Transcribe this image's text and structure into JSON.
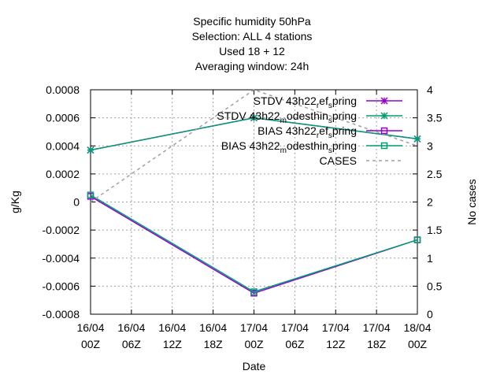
{
  "chart_data": {
    "type": "line",
    "title_lines": [
      "Specific humidity 50hPa",
      "Selection: ALL       4 stations",
      "Used  18  + 12",
      "Averaging window: 24h"
    ],
    "xlabel": "Date",
    "ylabel": "g/Kg",
    "y2label": "No cases",
    "x": [
      "16/04 00Z",
      "17/04 00Z",
      "18/04 00Z"
    ],
    "x_ticks": [
      [
        "16/04",
        "00Z"
      ],
      [
        "16/04",
        "06Z"
      ],
      [
        "16/04",
        "12Z"
      ],
      [
        "16/04",
        "18Z"
      ],
      [
        "17/04",
        "00Z"
      ],
      [
        "17/04",
        "06Z"
      ],
      [
        "17/04",
        "12Z"
      ],
      [
        "17/04",
        "18Z"
      ],
      [
        "18/04",
        "00Z"
      ]
    ],
    "ylim": [
      -0.0008,
      0.0008
    ],
    "y_ticks": [
      "-0.0008",
      "-0.0006",
      "-0.0004",
      "-0.0002",
      "0",
      "0.0002",
      "0.0004",
      "0.0006",
      "0.0008"
    ],
    "y2lim": [
      0,
      4
    ],
    "y2_ticks": [
      "0",
      "0.5",
      "1",
      "1.5",
      "2",
      "2.5",
      "3",
      "3.5",
      "4"
    ],
    "grid": true,
    "legend_position": "top-right",
    "series": [
      {
        "name": "STDV 43h22_ref_spring",
        "axis": "y",
        "color": "#9400d3",
        "marker": "star",
        "dash": false,
        "values": [
          0.00037,
          0.0006,
          0.00045
        ]
      },
      {
        "name": "STDV 43h22_modesthin_spring",
        "axis": "y",
        "color": "#009e73",
        "marker": "star",
        "dash": false,
        "values": [
          0.00037,
          0.0006,
          0.00045
        ]
      },
      {
        "name": "BIAS 43h22_ref_spring",
        "axis": "y",
        "color": "#9400d3",
        "marker": "open-square",
        "dash": false,
        "values": [
          4e-05,
          -0.00065,
          -0.00027
        ]
      },
      {
        "name": "BIAS 43h22_modesthin_spring",
        "axis": "y",
        "color": "#009e73",
        "marker": "open-square",
        "dash": false,
        "values": [
          5e-05,
          -0.00064,
          -0.00027
        ]
      },
      {
        "name": "CASES",
        "axis": "y2",
        "color": "#a0a0a0",
        "marker": "none",
        "dash": true,
        "values": [
          2,
          4,
          3
        ]
      }
    ],
    "legend": [
      {
        "pre": "STDV 43h22",
        "sub": "r",
        "mid": "ef",
        "sub2": "s",
        "post": "pring"
      },
      {
        "pre": "STDV 43h22",
        "sub": "m",
        "mid": "odesthin",
        "sub2": "s",
        "post": "pring"
      },
      {
        "pre": "BIAS 43h22",
        "sub": "r",
        "mid": "ef",
        "sub2": "s",
        "post": "pring"
      },
      {
        "pre": "BIAS 43h22",
        "sub": "m",
        "mid": "odesthin",
        "sub2": "s",
        "post": "pring"
      },
      {
        "pre": "CASES",
        "sub": "",
        "mid": "",
        "sub2": "",
        "post": ""
      }
    ]
  }
}
